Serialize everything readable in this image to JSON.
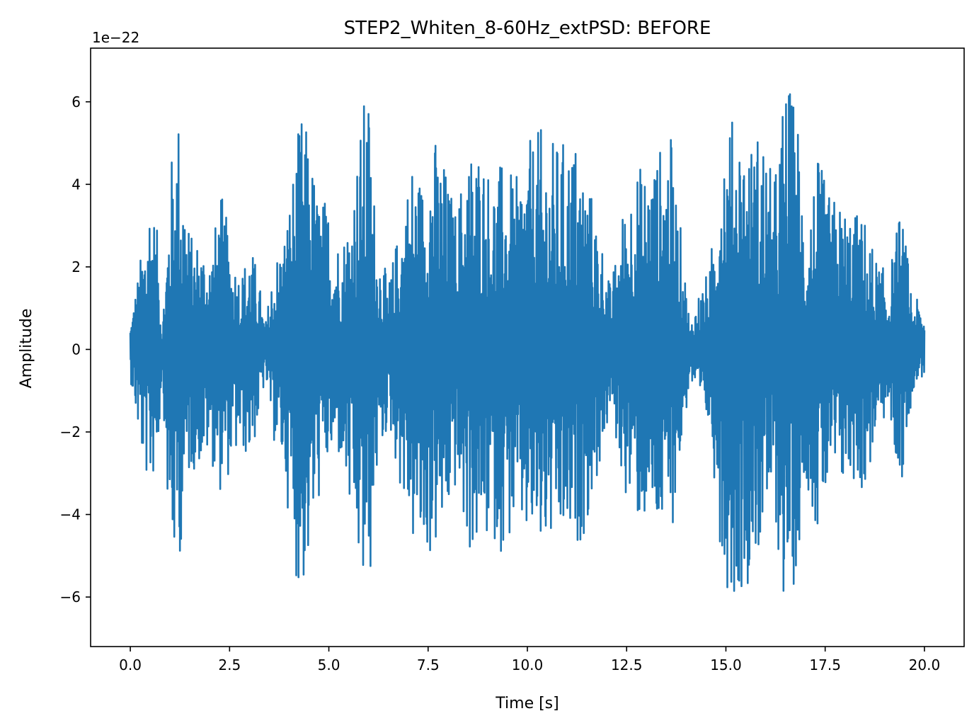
{
  "chart_data": {
    "type": "line",
    "title": "STEP2_Whiten_8-60Hz_extPSD: BEFORE",
    "xlabel": "Time [s]",
    "ylabel": "Amplitude",
    "y_offset_label": "1e−22",
    "xlim": [
      -1.0,
      21.0
    ],
    "ylim": [
      -7.2,
      7.3
    ],
    "x_ticks": [
      0.0,
      2.5,
      5.0,
      7.5,
      10.0,
      12.5,
      15.0,
      17.5,
      20.0
    ],
    "x_tick_labels": [
      "0.0",
      "2.5",
      "5.0",
      "7.5",
      "10.0",
      "12.5",
      "15.0",
      "17.5",
      "20.0"
    ],
    "y_ticks": [
      -6,
      -4,
      -2,
      0,
      2,
      4,
      6
    ],
    "y_tick_labels": [
      "−6",
      "−4",
      "−2",
      "0",
      "2",
      "4",
      "6"
    ],
    "grid": false,
    "series": [
      {
        "color": "#1f77b4",
        "x_range": [
          0.0,
          20.0
        ],
        "envelope_x": [
          0.0,
          0.3,
          0.5,
          0.7,
          0.8,
          1.0,
          1.2,
          1.5,
          1.8,
          2.0,
          2.3,
          2.6,
          2.8,
          3.0,
          3.2,
          3.4,
          3.6,
          3.9,
          4.1,
          4.3,
          4.5,
          4.7,
          5.0,
          5.3,
          5.6,
          5.9,
          6.0,
          6.2,
          6.5,
          6.8,
          7.1,
          7.4,
          7.6,
          7.9,
          8.2,
          8.5,
          8.8,
          9.1,
          9.4,
          9.7,
          10.0,
          10.3,
          10.6,
          10.9,
          11.2,
          11.5,
          11.8,
          12.1,
          12.4,
          12.7,
          13.0,
          13.3,
          13.6,
          13.9,
          14.1,
          14.3,
          14.6,
          14.9,
          15.1,
          15.3,
          15.6,
          15.9,
          16.2,
          16.5,
          16.8,
          17.0,
          17.3,
          17.6,
          17.9,
          18.2,
          18.5,
          18.8,
          19.1,
          19.4,
          19.7,
          20.0
        ],
        "envelope_upper": [
          0.7,
          2.5,
          4.1,
          2.7,
          0.5,
          4.4,
          6.0,
          2.8,
          2.7,
          2.4,
          3.8,
          2.3,
          1.9,
          2.6,
          2.0,
          0.6,
          2.1,
          3.0,
          4.4,
          5.8,
          5.2,
          3.9,
          3.6,
          2.5,
          3.9,
          6.2,
          6.3,
          2.9,
          1.6,
          3.2,
          4.7,
          4.1,
          5.4,
          4.6,
          3.4,
          5.0,
          5.1,
          4.3,
          4.6,
          4.1,
          5.0,
          5.4,
          5.1,
          5.1,
          5.2,
          4.3,
          3.1,
          1.5,
          3.4,
          4.5,
          4.5,
          4.9,
          5.3,
          2.6,
          0.6,
          1.4,
          2.0,
          5.7,
          5.6,
          5.7,
          5.0,
          5.6,
          4.0,
          6.7,
          5.9,
          3.0,
          4.7,
          3.8,
          3.6,
          3.4,
          3.2,
          2.2,
          1.8,
          3.5,
          1.4,
          0.9
        ],
        "envelope_lower": [
          -0.7,
          -2.8,
          -3.5,
          -2.6,
          -0.5,
          -5.4,
          -5.4,
          -3.0,
          -2.8,
          -2.6,
          -3.6,
          -2.7,
          -2.5,
          -2.7,
          -2.0,
          -0.7,
          -2.2,
          -3.2,
          -5.2,
          -6.1,
          -5.3,
          -3.9,
          -2.8,
          -2.7,
          -4.7,
          -6.3,
          -6.4,
          -3.2,
          -1.8,
          -3.4,
          -4.8,
          -5.3,
          -5.1,
          -4.6,
          -3.4,
          -5.0,
          -5.0,
          -4.6,
          -5.0,
          -4.4,
          -4.8,
          -5.1,
          -4.9,
          -4.9,
          -5.0,
          -4.3,
          -3.0,
          -1.5,
          -3.3,
          -4.2,
          -4.3,
          -4.7,
          -4.7,
          -2.4,
          -0.7,
          -1.6,
          -2.0,
          -5.2,
          -6.1,
          -6.0,
          -5.6,
          -4.8,
          -3.9,
          -6.6,
          -5.4,
          -3.0,
          -4.6,
          -3.5,
          -3.5,
          -3.2,
          -3.6,
          -2.0,
          -1.6,
          -3.6,
          -1.0,
          -0.6
        ]
      }
    ]
  }
}
